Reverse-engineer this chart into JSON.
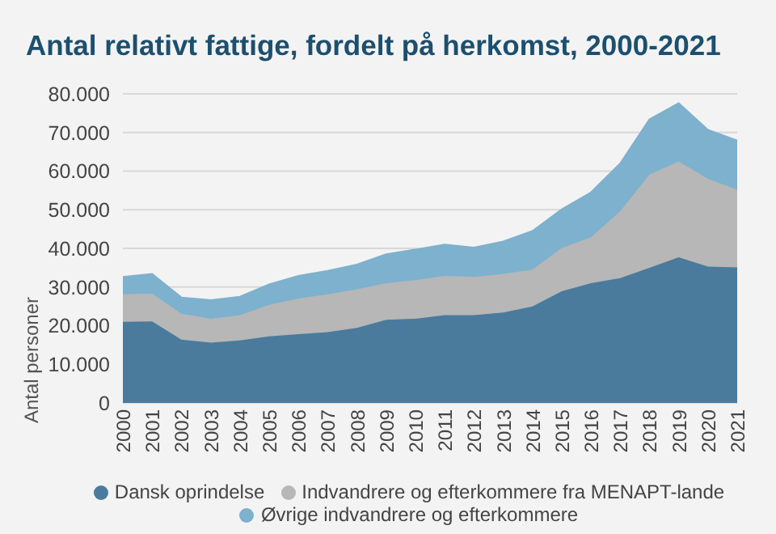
{
  "chart_data": {
    "type": "area",
    "title": "Antal relativt fattige, fordelt på herkomst, 2000-2021",
    "ylabel": "Antal personer",
    "categories": [
      "2000",
      "2001",
      "2002",
      "2003",
      "2004",
      "2005",
      "2006",
      "2007",
      "2008",
      "2009",
      "2010",
      "2011",
      "2012",
      "2013",
      "2014",
      "2015",
      "2016",
      "2017",
      "2018",
      "2019",
      "2020",
      "2021"
    ],
    "stacked": true,
    "series": [
      {
        "name": "Dansk oprindelse",
        "color": "#4a7b9d",
        "values": [
          21000,
          21100,
          16400,
          15600,
          16200,
          17200,
          17800,
          18300,
          19400,
          21500,
          21800,
          22700,
          22700,
          23400,
          25000,
          28900,
          31000,
          32300,
          35000,
          37700,
          35300,
          35100
        ]
      },
      {
        "name": "Indvandrere og efterkommere fra MENAPT-lande",
        "color": "#b7b7b7",
        "values": [
          7100,
          7200,
          6700,
          6200,
          6500,
          8200,
          9200,
          9800,
          10000,
          9500,
          10000,
          10200,
          9900,
          10000,
          9500,
          11200,
          11900,
          17300,
          24100,
          24800,
          22700,
          20100
        ]
      },
      {
        "name": "Øvrige indvandrere og efterkommere",
        "color": "#7db1ce",
        "values": [
          4500,
          5100,
          4200,
          4800,
          4800,
          5300,
          5900,
          6100,
          6400,
          7500,
          7900,
          8100,
          7600,
          8400,
          10000,
          10000,
          11600,
          12400,
          14300,
          15100,
          12700,
          12700
        ]
      }
    ],
    "ylim": [
      0,
      80000
    ],
    "yticks": [
      {
        "value": 0,
        "label": "0"
      },
      {
        "value": 10000,
        "label": "10.000"
      },
      {
        "value": 20000,
        "label": "20.000"
      },
      {
        "value": 30000,
        "label": "30.000"
      },
      {
        "value": 40000,
        "label": "40.000"
      },
      {
        "value": 50000,
        "label": "50.000"
      },
      {
        "value": 60000,
        "label": "60.000"
      },
      {
        "value": 70000,
        "label": "70.000"
      },
      {
        "value": 80000,
        "label": "80.000"
      }
    ],
    "grid": "y",
    "legend": "bottom"
  }
}
